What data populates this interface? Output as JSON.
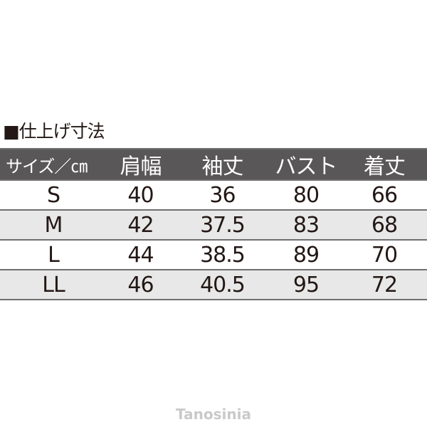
{
  "title": "■仕上げ寸法",
  "headers": [
    "サイズ／㎝",
    "肩幅",
    "袖丈",
    "バスト",
    "着丈"
  ],
  "rows": [
    [
      "S",
      "40",
      "36",
      "80",
      "66"
    ],
    [
      "M",
      "42",
      "37.5",
      "83",
      "68"
    ],
    [
      "L",
      "44",
      "38.5",
      "89",
      "70"
    ],
    [
      "LL",
      "46",
      "40.5",
      "95",
      "72"
    ]
  ],
  "watermark": "Tanosinia",
  "colors": {
    "header_bg": "#595757",
    "alt_row": "#e8e8e8",
    "text": "#231815"
  }
}
